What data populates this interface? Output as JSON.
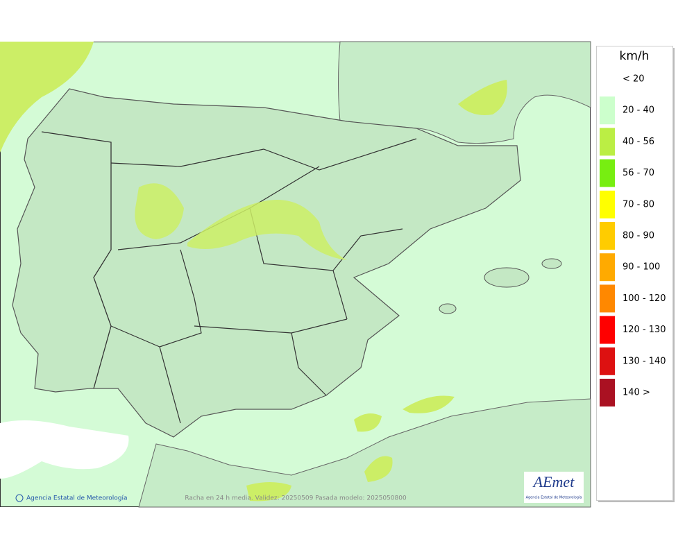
{
  "map": {
    "credit": "Agencia Estatal de Meteorología",
    "caption": "Racha en 24 h media. Validez: 20250509 Pasada modelo: 2025050800",
    "logo": {
      "name": "AEmet",
      "subtitle": "Agencia Estatal de Meteorología"
    }
  },
  "legend": {
    "unit": "km/h",
    "items": [
      {
        "label": "< 20",
        "color": "#ffffff"
      },
      {
        "label": "20 - 40",
        "color": "#ccffcc"
      },
      {
        "label": "40 - 56",
        "color": "#bbee44"
      },
      {
        "label": "56 - 70",
        "color": "#77ee11"
      },
      {
        "label": "70 - 80",
        "color": "#ffff00"
      },
      {
        "label": "80 - 90",
        "color": "#ffcc00"
      },
      {
        "label": "90 - 100",
        "color": "#ffaa00"
      },
      {
        "label": "100 - 120",
        "color": "#ff8800"
      },
      {
        "label": "120 - 130",
        "color": "#ff0000"
      },
      {
        "label": "130 - 140",
        "color": "#dd1111"
      },
      {
        "label": "140 >",
        "color": "#aa1122"
      }
    ]
  }
}
